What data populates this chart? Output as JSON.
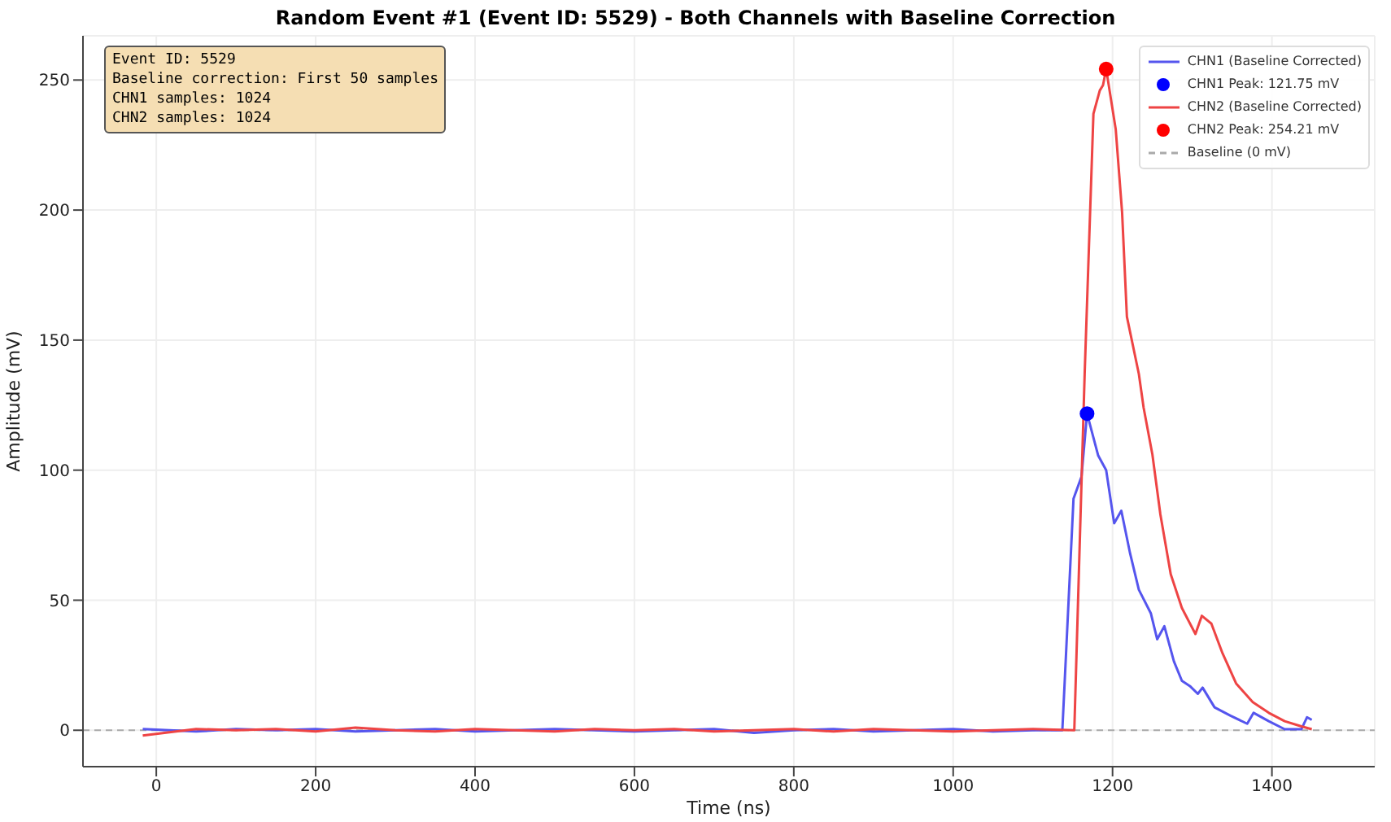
{
  "chart_data": {
    "type": "line",
    "title": "Random Event #1 (Event ID: 5529) - Both Channels with Baseline Correction",
    "xlabel": "Time (ns)",
    "ylabel": "Amplitude (mV)",
    "annotations": [
      "Event ID: 5529",
      "Baseline correction: First 50 samples",
      "CHN1 samples: 1024",
      "CHN2 samples: 1024"
    ],
    "xlim": [
      -92,
      1529
    ],
    "xticks": [
      0,
      200,
      400,
      600,
      800,
      1000,
      1200,
      1400
    ],
    "ylim": [
      -14,
      267
    ],
    "yticks": [
      0,
      50,
      100,
      150,
      200,
      250
    ],
    "grid": true,
    "legend": "top right",
    "series": [
      {
        "name": "CHN1 (Baseline Corrected)",
        "color": "#5555ee",
        "x": [
          -17,
          50,
          100,
          150,
          200,
          250,
          300,
          350,
          400,
          450,
          500,
          550,
          600,
          650,
          700,
          750,
          800,
          850,
          900,
          950,
          1000,
          1050,
          1100,
          1137,
          1151,
          1161,
          1168,
          1182,
          1192,
          1202,
          1211,
          1222,
          1233,
          1248,
          1256,
          1265,
          1277,
          1287,
          1297,
          1307,
          1313,
          1328,
          1348,
          1369,
          1377,
          1396,
          1416,
          1437,
          1444,
          1450
        ],
        "values": [
          0.5,
          -0.5,
          0.5,
          0,
          0.5,
          -0.5,
          0,
          0.5,
          -0.5,
          0,
          0.5,
          0,
          -0.5,
          0,
          0.5,
          -1,
          0,
          0.5,
          -0.5,
          0,
          0.5,
          -0.5,
          0,
          0,
          89,
          97.5,
          121.75,
          105.6,
          100,
          79.6,
          84.4,
          68,
          54,
          45,
          35,
          40,
          26.5,
          19,
          17,
          14,
          16.4,
          8.8,
          5.6,
          2.5,
          6.7,
          3.5,
          0.4,
          0.4,
          5,
          4
        ]
      },
      {
        "name": "CHN1 Peak: 121.75 mV",
        "type": "scatter",
        "marker": "circle",
        "color": "#0000ff",
        "x": [
          1168
        ],
        "values": [
          121.75
        ]
      },
      {
        "name": "CHN2 (Baseline Corrected)",
        "color": "#ee4444",
        "x": [
          -17,
          50,
          100,
          150,
          200,
          250,
          300,
          350,
          400,
          450,
          500,
          550,
          600,
          650,
          700,
          750,
          800,
          850,
          900,
          950,
          1000,
          1050,
          1100,
          1152,
          1165,
          1176,
          1184,
          1188,
          1192,
          1204,
          1212,
          1218,
          1233,
          1239,
          1250,
          1260,
          1273,
          1287,
          1304,
          1312,
          1324,
          1338,
          1355,
          1376,
          1396,
          1416,
          1437,
          1450
        ],
        "values": [
          -2,
          0.5,
          0,
          0.5,
          -0.5,
          1,
          0,
          -0.5,
          0.5,
          0,
          -0.5,
          0.5,
          0,
          0.5,
          -0.5,
          0,
          0.5,
          -0.5,
          0.5,
          0,
          -0.5,
          0,
          0.5,
          0,
          137,
          237,
          246,
          248,
          254.21,
          231,
          199,
          159,
          137,
          124,
          106,
          83,
          60,
          47,
          37,
          44,
          41,
          29.6,
          18,
          10.8,
          6.7,
          3.5,
          1.5,
          0.4
        ]
      },
      {
        "name": "CHN2 Peak: 254.21 mV",
        "type": "scatter",
        "marker": "circle",
        "color": "#ff0000",
        "x": [
          1192
        ],
        "values": [
          254.21
        ]
      }
    ],
    "ref_lines": [
      {
        "axis": "y",
        "value": 0,
        "label": "Baseline (0 mV)",
        "color": "#aaaaaa",
        "line_style": "dashed"
      }
    ]
  }
}
